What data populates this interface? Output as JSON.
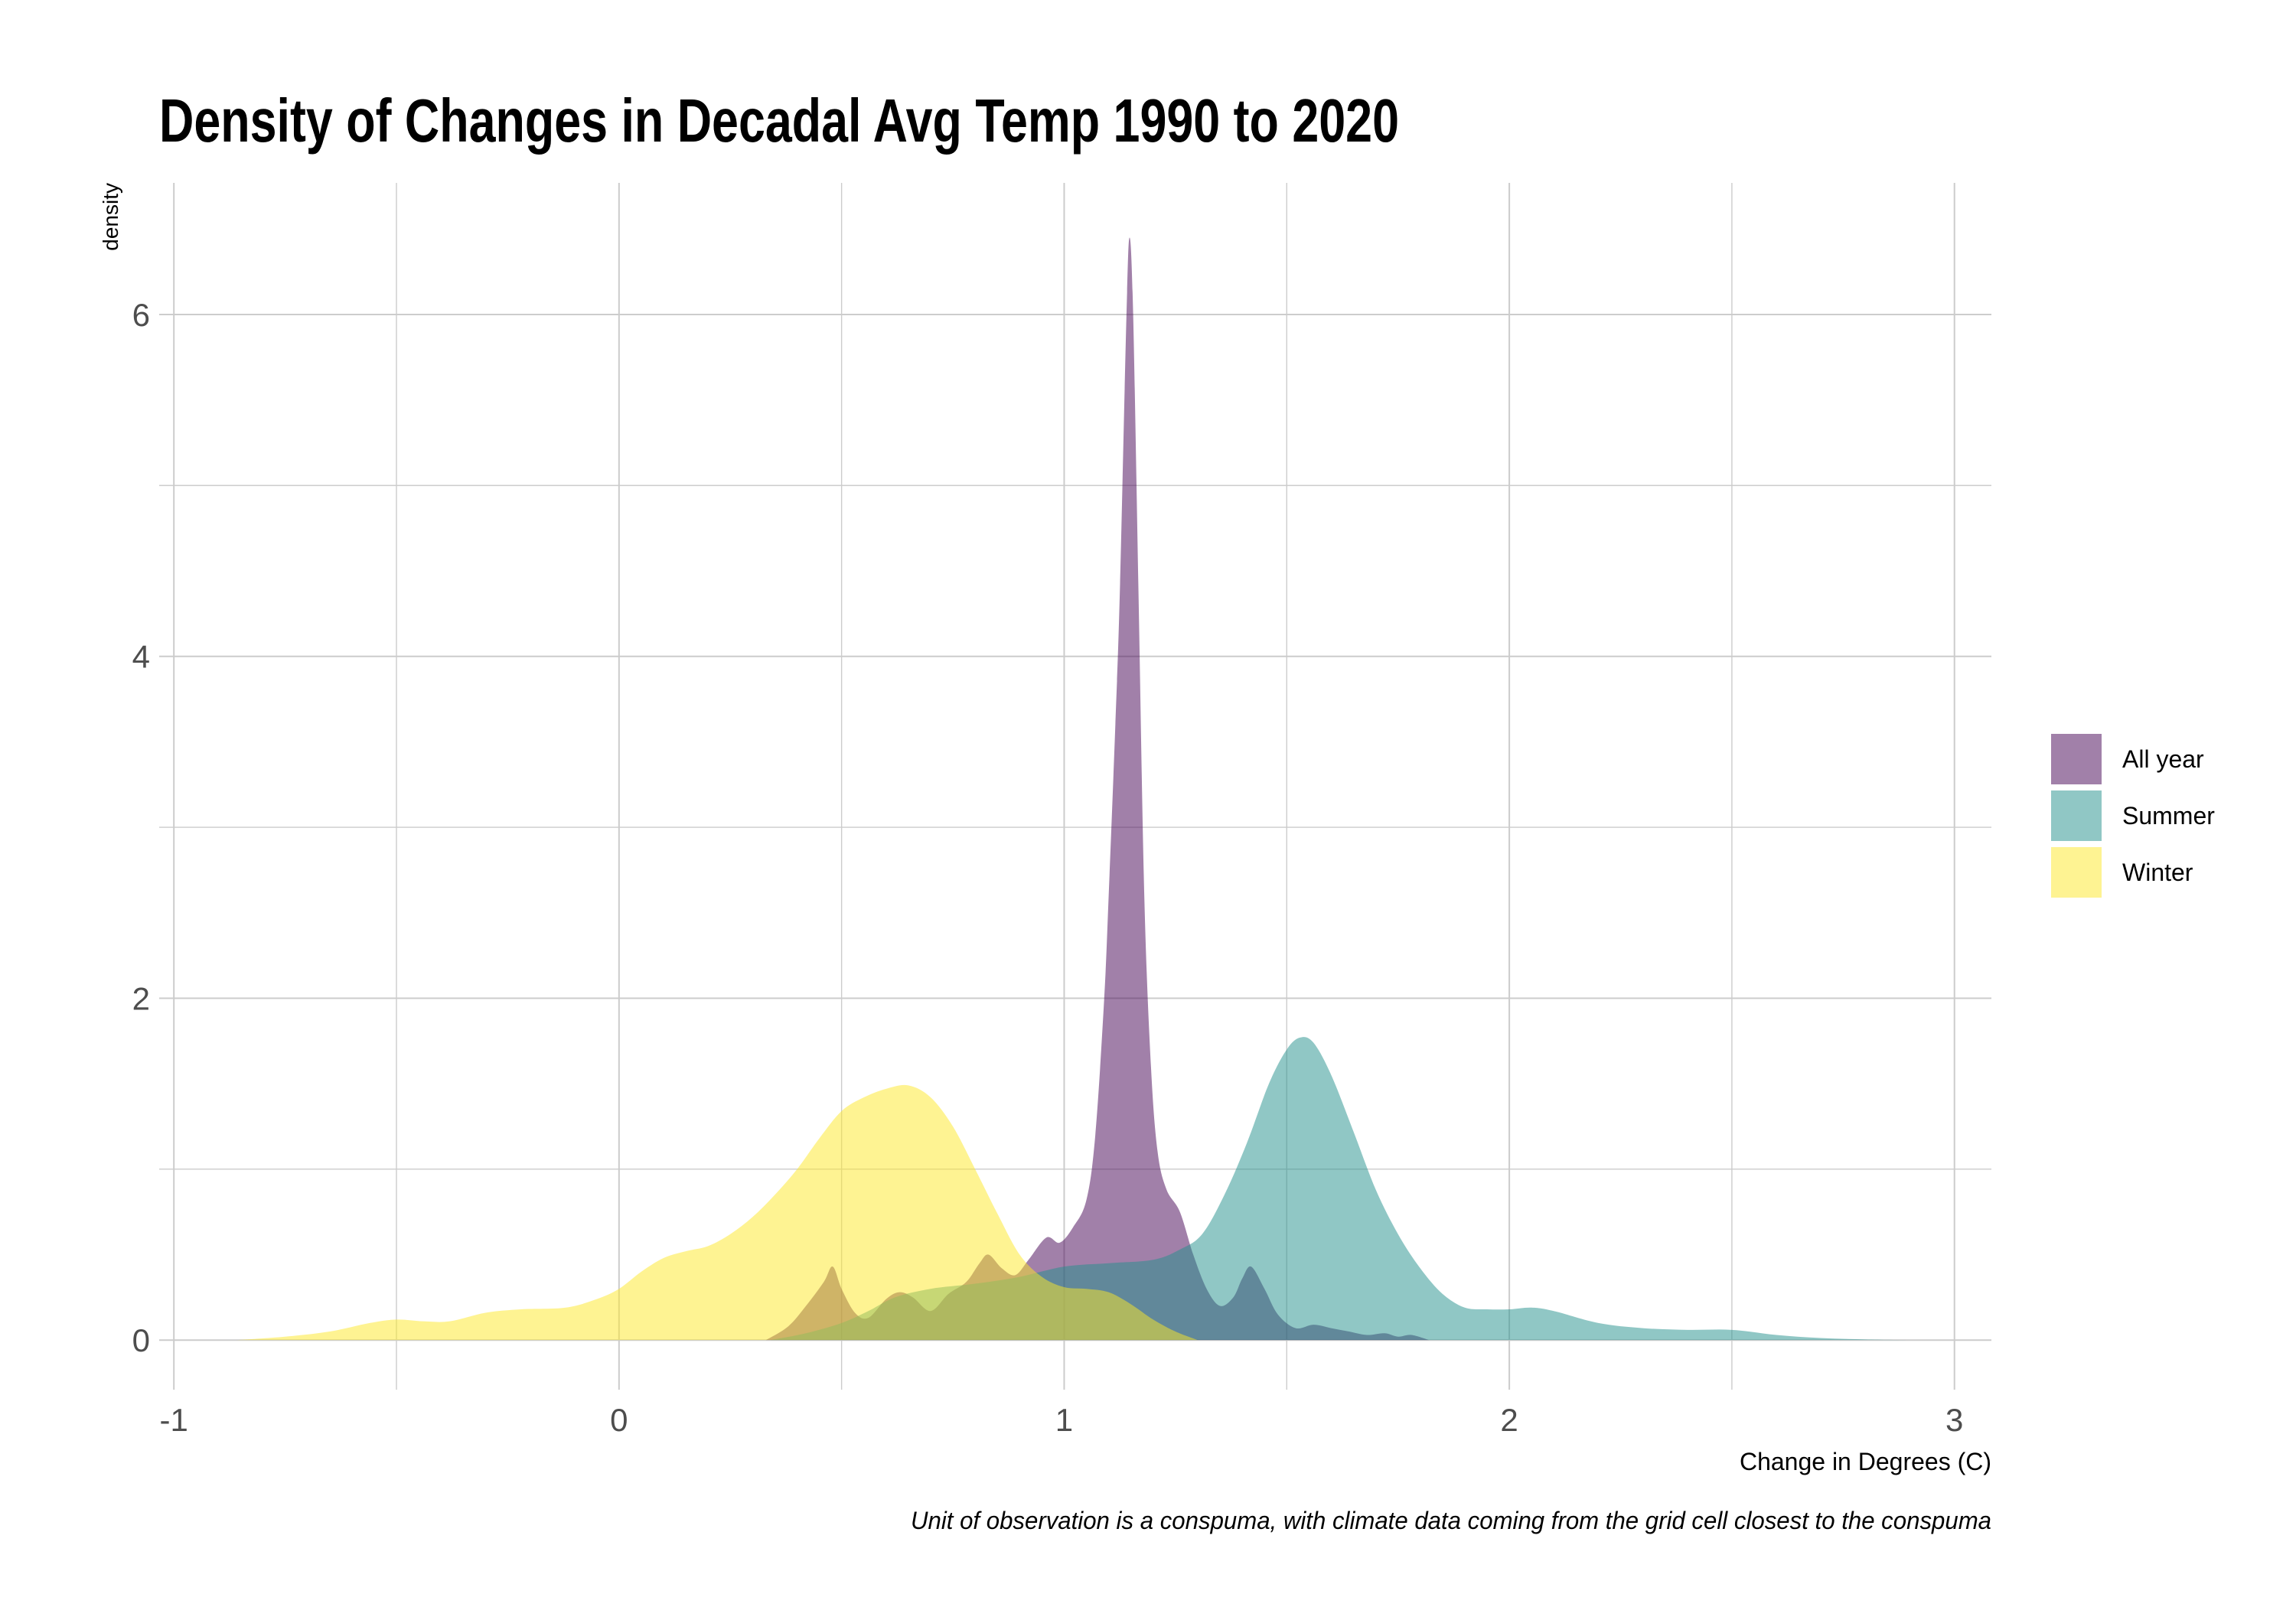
{
  "chart_data": {
    "type": "area",
    "title": "Density of Changes in Decadal Avg Temp 1990 to 2020",
    "xlabel": "Change in Degrees (C)",
    "ylabel": "density",
    "caption": "Unit of observation is a conspuma, with climate data coming from the grid cell closest to the conspuma",
    "xlim": [
      -1.033,
      3.083
    ],
    "ylim": [
      -0.29,
      6.77
    ],
    "x_ticks": [
      {
        "value": -1,
        "label": "-1"
      },
      {
        "value": 0,
        "label": "0"
      },
      {
        "value": 1,
        "label": "1"
      },
      {
        "value": 2,
        "label": "2"
      },
      {
        "value": 3,
        "label": "3"
      }
    ],
    "y_ticks": [
      {
        "value": 0,
        "label": "0"
      },
      {
        "value": 2,
        "label": "2"
      },
      {
        "value": 4,
        "label": "4"
      },
      {
        "value": 6,
        "label": "6"
      }
    ],
    "grid": true,
    "legend": {
      "position": "right"
    },
    "fill_alpha": 0.5,
    "series": [
      {
        "name": "All year",
        "color": "#440154",
        "x": [
          0.33,
          0.38,
          0.42,
          0.46,
          0.48,
          0.5,
          0.53,
          0.56,
          0.6,
          0.63,
          0.66,
          0.7,
          0.74,
          0.78,
          0.81,
          0.83,
          0.86,
          0.89,
          0.92,
          0.96,
          0.99,
          1.02,
          1.05,
          1.07,
          1.09,
          1.1,
          1.115,
          1.125,
          1.14,
          1.147,
          1.155,
          1.167,
          1.18,
          1.195,
          1.21,
          1.23,
          1.26,
          1.29,
          1.32,
          1.35,
          1.38,
          1.4,
          1.42,
          1.45,
          1.48,
          1.52,
          1.56,
          1.6,
          1.64,
          1.68,
          1.72,
          1.75,
          1.78,
          1.82
        ],
        "y": [
          0.0,
          0.08,
          0.2,
          0.34,
          0.43,
          0.3,
          0.16,
          0.13,
          0.24,
          0.28,
          0.25,
          0.17,
          0.27,
          0.34,
          0.45,
          0.5,
          0.42,
          0.38,
          0.47,
          0.6,
          0.57,
          0.66,
          0.82,
          1.2,
          2.0,
          2.6,
          3.6,
          4.37,
          6.0,
          6.45,
          6.0,
          4.37,
          2.6,
          1.6,
          1.1,
          0.88,
          0.75,
          0.5,
          0.3,
          0.2,
          0.25,
          0.36,
          0.43,
          0.3,
          0.15,
          0.07,
          0.09,
          0.07,
          0.05,
          0.03,
          0.04,
          0.02,
          0.03,
          0.0
        ]
      },
      {
        "name": "Summer",
        "color": "#21908C",
        "x": [
          0.34,
          0.42,
          0.5,
          0.56,
          0.62,
          0.7,
          0.8,
          0.9,
          1.0,
          1.1,
          1.2,
          1.26,
          1.31,
          1.36,
          1.41,
          1.46,
          1.5,
          1.53,
          1.56,
          1.6,
          1.65,
          1.7,
          1.75,
          1.8,
          1.85,
          1.9,
          1.95,
          2.0,
          2.05,
          2.1,
          2.2,
          2.3,
          2.4,
          2.5,
          2.6,
          2.7,
          2.8,
          2.9
        ],
        "y": [
          0.0,
          0.04,
          0.1,
          0.17,
          0.25,
          0.3,
          0.33,
          0.37,
          0.43,
          0.45,
          0.47,
          0.53,
          0.62,
          0.85,
          1.15,
          1.5,
          1.7,
          1.77,
          1.74,
          1.55,
          1.22,
          0.88,
          0.62,
          0.42,
          0.27,
          0.19,
          0.18,
          0.18,
          0.19,
          0.17,
          0.1,
          0.07,
          0.06,
          0.06,
          0.03,
          0.012,
          0.004,
          0.0
        ]
      },
      {
        "name": "Winter",
        "color": "#FDE725",
        "x": [
          -0.86,
          -0.75,
          -0.65,
          -0.56,
          -0.5,
          -0.44,
          -0.38,
          -0.3,
          -0.22,
          -0.12,
          -0.05,
          0.0,
          0.05,
          0.1,
          0.15,
          0.2,
          0.25,
          0.3,
          0.35,
          0.4,
          0.45,
          0.5,
          0.55,
          0.6,
          0.65,
          0.7,
          0.75,
          0.8,
          0.85,
          0.9,
          0.95,
          1.0,
          1.05,
          1.1,
          1.15,
          1.2,
          1.25,
          1.3
        ],
        "y": [
          0.0,
          0.02,
          0.05,
          0.1,
          0.12,
          0.11,
          0.11,
          0.16,
          0.18,
          0.19,
          0.24,
          0.3,
          0.4,
          0.48,
          0.52,
          0.55,
          0.62,
          0.72,
          0.85,
          1.0,
          1.18,
          1.34,
          1.42,
          1.47,
          1.49,
          1.42,
          1.25,
          1.0,
          0.74,
          0.5,
          0.37,
          0.31,
          0.3,
          0.28,
          0.21,
          0.12,
          0.05,
          0.0
        ]
      }
    ]
  }
}
